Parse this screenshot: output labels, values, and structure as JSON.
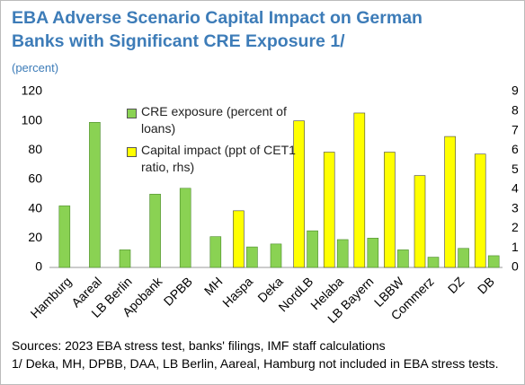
{
  "chart_data": {
    "type": "bar",
    "title": "EBA Adverse Scenario Capital Impact on German Banks with Significant CRE Exposure 1/",
    "subtitle": "(percent)",
    "categories": [
      "Hamburg",
      "Aareal",
      "LB Berlin",
      "Apobank",
      "DPBB",
      "MH",
      "Haspa",
      "Deka",
      "NordLB",
      "Helaba",
      "LB Bayern",
      "LBBW",
      "Commerz",
      "DZ",
      "DB"
    ],
    "series": [
      {
        "name": "CRE exposure (percent of loans)",
        "color": "#8ad253",
        "values": [
          42,
          99,
          12,
          50,
          54,
          21,
          14,
          16,
          25,
          19,
          20,
          12,
          7,
          13,
          8
        ]
      },
      {
        "name": "Capital impact (ppt of CET1 ratio, rhs)",
        "color": "#ffff00",
        "axis": "y2",
        "values": [
          null,
          null,
          null,
          null,
          null,
          null,
          2.9,
          null,
          7.5,
          5.9,
          7.9,
          5.9,
          4.7,
          6.7,
          5.8
        ]
      }
    ],
    "ylim": [
      0,
      120
    ],
    "yticks": [
      0,
      20,
      40,
      60,
      80,
      100,
      120
    ],
    "y2lim": [
      0,
      9
    ],
    "y2ticks": [
      0,
      1,
      2,
      3,
      4,
      5,
      6,
      7,
      8,
      9
    ],
    "notes": [
      "Sources: 2023 EBA stress test, banks' filings, IMF staff calculations",
      "1/ Deka, MH, DPBB, DAA, LB Berlin, Aareal, Hamburg not included in EBA stress tests."
    ]
  }
}
